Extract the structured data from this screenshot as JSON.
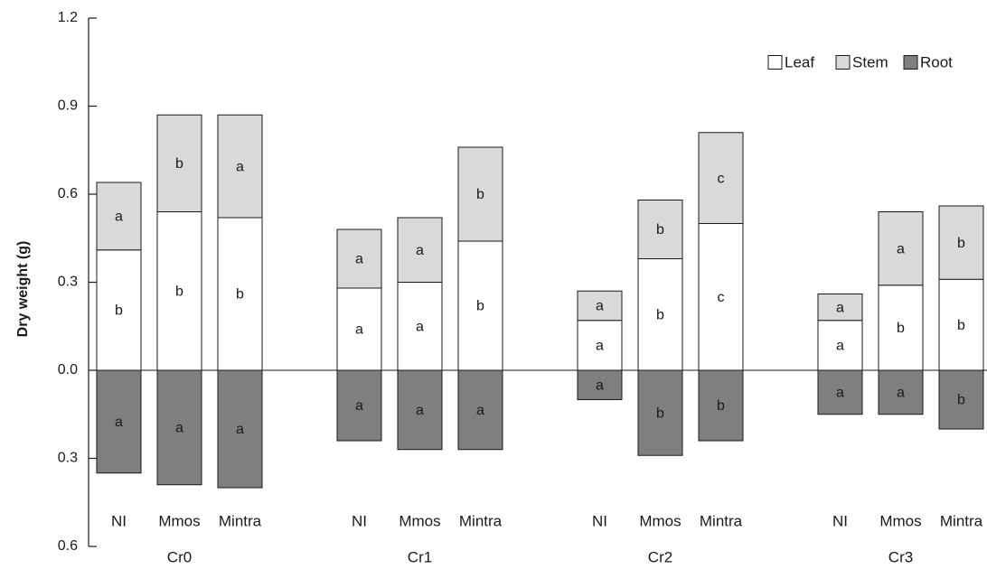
{
  "chart_data": {
    "type": "bar",
    "stacked": true,
    "ylabel": "Dry weight (g)",
    "ylim": [
      -0.6,
      1.2
    ],
    "yticks": [
      {
        "value": 1.2,
        "label": "1.2"
      },
      {
        "value": 0.9,
        "label": "0.9"
      },
      {
        "value": 0.6,
        "label": "0.6"
      },
      {
        "value": 0.3,
        "label": "0.3"
      },
      {
        "value": 0.0,
        "label": "0.0"
      },
      {
        "value": -0.3,
        "label": "0.3"
      },
      {
        "value": -0.6,
        "label": "0.6"
      }
    ],
    "groups": [
      "Cr0",
      "Cr1",
      "Cr2",
      "Cr3"
    ],
    "categories": [
      "NI",
      "Mmos",
      "Mintra"
    ],
    "legend": {
      "position": "top-right",
      "items": [
        {
          "name": "Leaf",
          "color": "#ffffff"
        },
        {
          "name": "Stem",
          "color": "#d9d9d9"
        },
        {
          "name": "Root",
          "color": "#7f7f7f"
        }
      ]
    },
    "series": [
      {
        "name": "Leaf",
        "color": "#ffffff",
        "direction": "up",
        "values": [
          [
            0.41,
            0.54,
            0.52
          ],
          [
            0.28,
            0.3,
            0.44
          ],
          [
            0.17,
            0.38,
            0.5
          ],
          [
            0.17,
            0.29,
            0.31
          ]
        ],
        "letters": [
          [
            "b",
            "b",
            "b"
          ],
          [
            "a",
            "a",
            "b"
          ],
          [
            "a",
            "b",
            "c"
          ],
          [
            "a",
            "b",
            "b"
          ]
        ]
      },
      {
        "name": "Stem",
        "color": "#d9d9d9",
        "direction": "up",
        "values": [
          [
            0.23,
            0.33,
            0.35
          ],
          [
            0.2,
            0.22,
            0.32
          ],
          [
            0.1,
            0.2,
            0.31
          ],
          [
            0.09,
            0.25,
            0.25
          ]
        ],
        "letters": [
          [
            "a",
            "b",
            "a"
          ],
          [
            "a",
            "a",
            "b"
          ],
          [
            "a",
            "b",
            "c"
          ],
          [
            "a",
            "a",
            "b"
          ]
        ]
      },
      {
        "name": "Root",
        "color": "#7f7f7f",
        "direction": "down",
        "values": [
          [
            0.35,
            0.39,
            0.4
          ],
          [
            0.24,
            0.27,
            0.27
          ],
          [
            0.1,
            0.29,
            0.24
          ],
          [
            0.15,
            0.15,
            0.2
          ]
        ],
        "letters": [
          [
            "a",
            "a",
            "a"
          ],
          [
            "a",
            "a",
            "a"
          ],
          [
            "a",
            "b",
            "b"
          ],
          [
            "a",
            "a",
            "b"
          ]
        ]
      }
    ]
  }
}
